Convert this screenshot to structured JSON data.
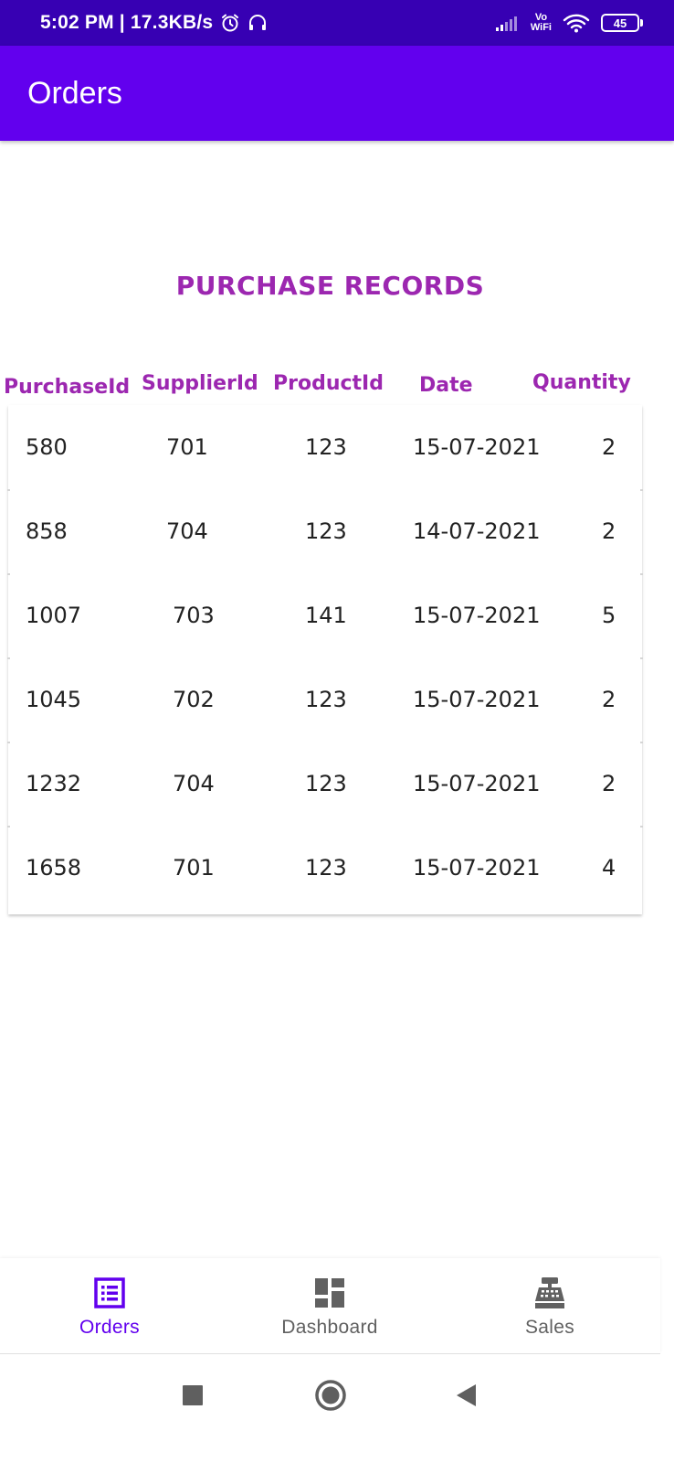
{
  "status_bar": {
    "time_speed": "5:02 PM | 17.3KB/s",
    "vowifi_top": "Vo",
    "vowifi_bottom": "WiFi",
    "battery": "45",
    "background": "#3700b3"
  },
  "app_bar": {
    "title": "Orders",
    "background": "#6200ee"
  },
  "main": {
    "heading": "PURCHASE RECORDS",
    "heading_color": "#9c27b0",
    "columns": [
      "PurchaseId",
      "SupplierId",
      "ProductId",
      "Date",
      "Quantity"
    ],
    "rows": [
      [
        "580",
        "701",
        "123",
        "15-07-2021",
        "2"
      ],
      [
        "858",
        "704",
        "123",
        "14-07-2021",
        "2"
      ],
      [
        "1007",
        "703",
        "141",
        "15-07-2021",
        "5"
      ],
      [
        "1045",
        "702",
        "123",
        "15-07-2021",
        "2"
      ],
      [
        "1232",
        "704",
        "123",
        "15-07-2021",
        "2"
      ],
      [
        "1658",
        "701",
        "123",
        "15-07-2021",
        "4"
      ]
    ]
  },
  "bottom_nav": {
    "items": [
      {
        "label": "Orders",
        "icon": "list-icon",
        "active": true
      },
      {
        "label": "Dashboard",
        "icon": "dashboard-icon",
        "active": false
      },
      {
        "label": "Sales",
        "icon": "cash-register-icon",
        "active": false
      }
    ],
    "active_color": "#6200ee",
    "inactive_color": "#616161"
  },
  "system_nav": {
    "buttons": [
      "recents-square-icon",
      "home-circle-icon",
      "back-triangle-icon"
    ]
  }
}
